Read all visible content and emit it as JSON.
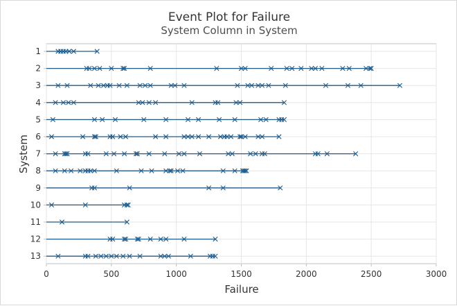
{
  "chart_data": {
    "type": "event-plot",
    "title": "Event Plot for Failure",
    "subtitle": "System Column in System",
    "xlabel": "Failure",
    "ylabel": "System",
    "xlim": [
      0,
      3000
    ],
    "xticks": [
      0,
      500,
      1000,
      1500,
      2000,
      2500,
      3000
    ],
    "grid": true,
    "colors": {
      "series": "#1f5a8a",
      "grid": "#e6e6e6",
      "axis": "#bfbfbf",
      "text": "#333333"
    },
    "systems": [
      {
        "label": "1",
        "end": 390,
        "failures": [
          90,
          110,
          130,
          150,
          175,
          210,
          390
        ]
      },
      {
        "label": "2",
        "end": 2500,
        "failures": [
          310,
          330,
          370,
          410,
          500,
          590,
          600,
          800,
          1310,
          1500,
          1530,
          1730,
          1850,
          1890,
          1960,
          2040,
          2070,
          2120,
          2280,
          2330,
          2460,
          2490,
          2500
        ]
      },
      {
        "label": "3",
        "end": 2720,
        "failures": [
          90,
          160,
          340,
          400,
          440,
          470,
          490,
          560,
          620,
          720,
          760,
          800,
          960,
          990,
          1060,
          1470,
          1550,
          1580,
          1630,
          1660,
          1710,
          1840,
          2150,
          2320,
          2420,
          2720
        ]
      },
      {
        "label": "4",
        "end": 1830,
        "failures": [
          70,
          130,
          170,
          210,
          710,
          740,
          790,
          840,
          1120,
          1300,
          1320,
          1460,
          1490,
          1830
        ]
      },
      {
        "label": "5",
        "end": 1830,
        "failures": [
          50,
          370,
          430,
          530,
          750,
          920,
          1090,
          1170,
          1330,
          1450,
          1650,
          1690,
          1790,
          1810,
          1830
        ]
      },
      {
        "label": "6",
        "end": 1790,
        "failures": [
          40,
          280,
          370,
          380,
          490,
          510,
          570,
          610,
          840,
          920,
          1060,
          1090,
          1120,
          1170,
          1250,
          1340,
          1370,
          1390,
          1420,
          1490,
          1500,
          1530,
          1630,
          1660,
          1790
        ]
      },
      {
        "label": "7",
        "end": 2380,
        "failures": [
          70,
          140,
          150,
          160,
          300,
          320,
          460,
          520,
          600,
          690,
          700,
          790,
          910,
          1020,
          1060,
          1180,
          1400,
          1430,
          1570,
          1610,
          1660,
          1680,
          2070,
          2090,
          2160,
          2380
        ]
      },
      {
        "label": "8",
        "end": 1540,
        "failures": [
          70,
          140,
          190,
          260,
          300,
          320,
          340,
          370,
          540,
          730,
          810,
          920,
          950,
          960,
          1010,
          1050,
          1360,
          1450,
          1510,
          1520,
          1530,
          1540
        ]
      },
      {
        "label": "9",
        "end": 1800,
        "failures": [
          350,
          370,
          640,
          1250,
          1360,
          1800
        ]
      },
      {
        "label": "10",
        "end": 630,
        "failures": [
          40,
          300,
          600,
          620,
          630
        ]
      },
      {
        "label": "11",
        "end": 620,
        "failures": [
          120,
          620
        ]
      },
      {
        "label": "12",
        "end": 1300,
        "failures": [
          490,
          510,
          600,
          610,
          700,
          710,
          800,
          880,
          920,
          1060,
          1300
        ]
      },
      {
        "label": "13",
        "end": 1300,
        "failures": [
          90,
          300,
          320,
          380,
          420,
          460,
          500,
          540,
          590,
          640,
          720,
          880,
          910,
          940,
          1110,
          1260,
          1280,
          1300
        ]
      }
    ]
  }
}
